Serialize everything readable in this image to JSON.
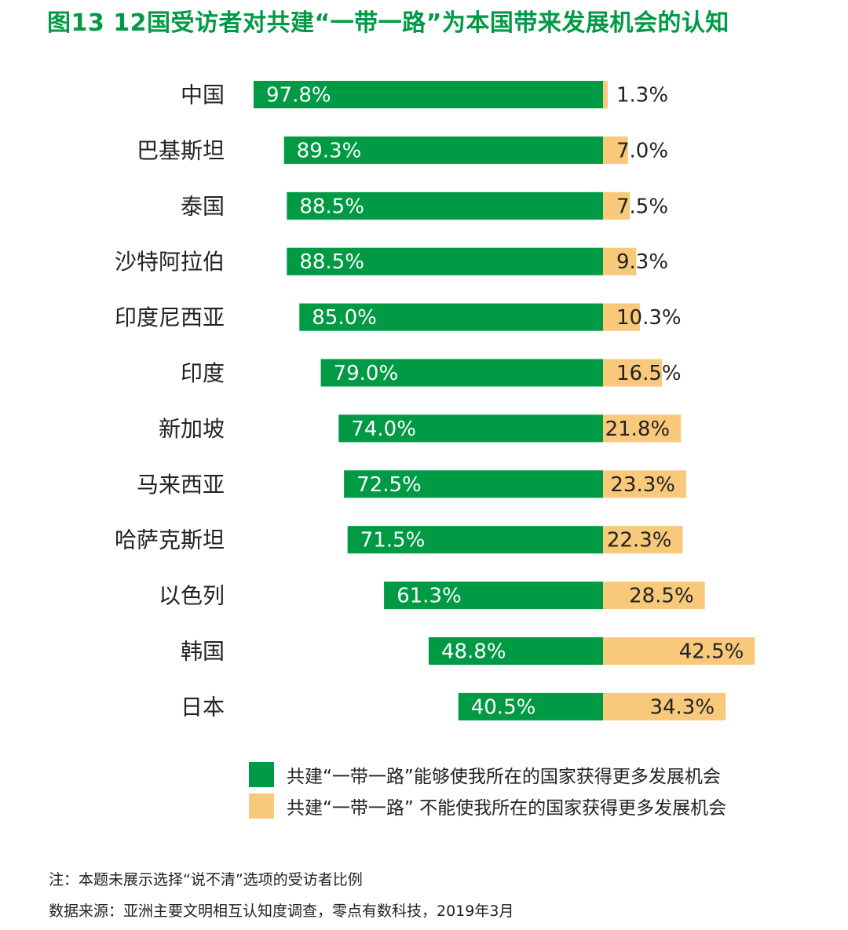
{
  "title": "图13  12国受访者对共建“一带一路”为本国带来发展机会的认知",
  "colors": {
    "yes": "#009a44",
    "no": "#f8c97a",
    "title": "#009a44"
  },
  "chart_data": {
    "type": "bar",
    "orientation": "horizontal",
    "stacked": "diverging",
    "categories": [
      "中国",
      "巴基斯坦",
      "泰国",
      "沙特阿拉伯",
      "印度尼西亚",
      "印度",
      "新加坡",
      "马来西亚",
      "哈萨克斯坦",
      "以色列",
      "韩国",
      "日本"
    ],
    "series": [
      {
        "name": "共建“一带一路”能够使我所在的国家获得更多发展机会",
        "values": [
          97.8,
          89.3,
          88.5,
          88.5,
          85.0,
          79.0,
          74.0,
          72.5,
          71.5,
          61.3,
          48.8,
          40.5
        ],
        "labels": [
          "97.8%",
          "89.3%",
          "88.5%",
          "88.5%",
          "85.0%",
          "79.0%",
          "74.0%",
          "72.5%",
          "71.5%",
          "61.3%",
          "48.8%",
          "40.5%"
        ]
      },
      {
        "name": "共建“一带一路” 不能使我所在的国家获得更多发展机会",
        "values": [
          1.3,
          7.0,
          7.5,
          9.3,
          10.3,
          16.5,
          21.8,
          23.3,
          22.3,
          28.5,
          42.5,
          34.3
        ],
        "labels": [
          "1.3%",
          "7.0%",
          "7.5%",
          "9.3%",
          "10.3%",
          "16.5%",
          "21.8%",
          "23.3%",
          "22.3%",
          "28.5%",
          "42.5%",
          "34.3%"
        ]
      }
    ],
    "legend_position": "bottom",
    "grid": false
  },
  "legend": {
    "yes_label": "共建“一带一路”能够使我所在的国家获得更多发展机会",
    "no_label": "共建“一带一路” 不能使我所在的国家获得更多发展机会"
  },
  "notes": {
    "note": "注：本题未展示选择“说不清”选项的受访者比例",
    "source": "数据来源：亚洲主要文明相互认知度调查，零点有数科技，2019年3月"
  }
}
